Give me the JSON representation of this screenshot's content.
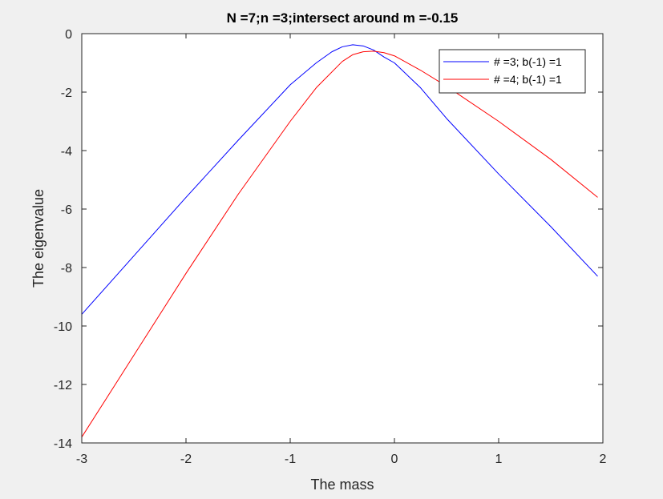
{
  "window": {
    "background": "#f0f0f0"
  },
  "chart_data": {
    "type": "line",
    "title": "N =7;n =3;intersect around m =-0.15",
    "xlabel": "The mass",
    "ylabel": "The eigenvalue",
    "xlim": [
      -3,
      2
    ],
    "ylim": [
      -14,
      0
    ],
    "xticks": [
      -3,
      -2,
      -1,
      0,
      1,
      2
    ],
    "yticks": [
      0,
      -2,
      -4,
      -6,
      -8,
      -10,
      -12,
      -14
    ],
    "grid": false,
    "legend_position": "top-right",
    "series": [
      {
        "name": "# =3; b(-1) =1",
        "color": "#0000ff",
        "x": [
          -3.0,
          -2.5,
          -2.0,
          -1.5,
          -1.0,
          -0.75,
          -0.6,
          -0.5,
          -0.4,
          -0.3,
          -0.2,
          -0.1,
          0.0,
          0.25,
          0.5,
          1.0,
          1.5,
          1.95
        ],
        "y": [
          -9.6,
          -7.6,
          -5.6,
          -3.65,
          -1.75,
          -1.0,
          -0.62,
          -0.45,
          -0.38,
          -0.42,
          -0.56,
          -0.8,
          -1.0,
          -1.85,
          -2.9,
          -4.8,
          -6.6,
          -8.3
        ]
      },
      {
        "name": "# =4; b(-1) =1",
        "color": "#ff0000",
        "x": [
          -3.0,
          -2.5,
          -2.0,
          -1.5,
          -1.0,
          -0.75,
          -0.5,
          -0.4,
          -0.3,
          -0.2,
          -0.1,
          0.0,
          0.25,
          0.5,
          1.0,
          1.5,
          1.95
        ],
        "y": [
          -13.8,
          -11.0,
          -8.2,
          -5.5,
          -3.0,
          -1.85,
          -0.95,
          -0.72,
          -0.62,
          -0.6,
          -0.65,
          -0.76,
          -1.25,
          -1.8,
          -3.0,
          -4.3,
          -5.6
        ]
      }
    ]
  }
}
